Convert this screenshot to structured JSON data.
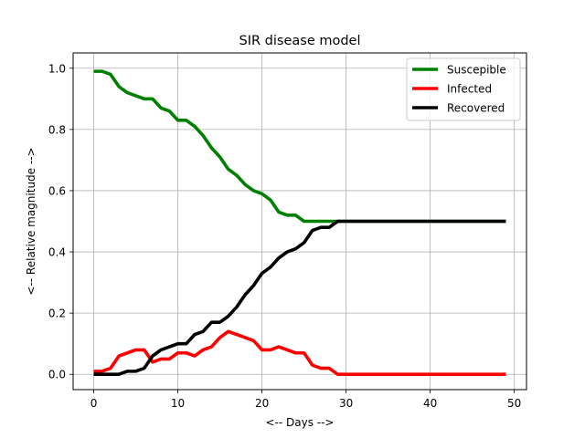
{
  "chart_data": {
    "type": "line",
    "title": "SIR disease model",
    "xlabel": "<-- Days -->",
    "ylabel": "<-- Relative magnitude -->",
    "xlim": [
      -2.45,
      51.45
    ],
    "ylim": [
      -0.05,
      1.05
    ],
    "x_ticks": [
      0,
      10,
      20,
      30,
      40,
      50
    ],
    "y_ticks": [
      0.0,
      0.2,
      0.4,
      0.6,
      0.8,
      1.0
    ],
    "x_tick_labels": [
      "0",
      "10",
      "20",
      "30",
      "40",
      "50"
    ],
    "y_tick_labels": [
      "0.0",
      "0.2",
      "0.4",
      "0.6",
      "0.8",
      "1.0"
    ],
    "grid": true,
    "legend_position": "top-right",
    "x": [
      0,
      1,
      2,
      3,
      4,
      5,
      6,
      7,
      8,
      9,
      10,
      11,
      12,
      13,
      14,
      15,
      16,
      17,
      18,
      19,
      20,
      21,
      22,
      23,
      24,
      25,
      26,
      27,
      28,
      29,
      30,
      31,
      32,
      33,
      34,
      35,
      36,
      37,
      38,
      39,
      40,
      41,
      42,
      43,
      44,
      45,
      46,
      47,
      48,
      49
    ],
    "series": [
      {
        "name": "Suscepible",
        "color": "#008000",
        "values": [
          0.99,
          0.99,
          0.98,
          0.94,
          0.92,
          0.91,
          0.9,
          0.9,
          0.87,
          0.86,
          0.83,
          0.83,
          0.81,
          0.78,
          0.74,
          0.71,
          0.67,
          0.65,
          0.62,
          0.6,
          0.59,
          0.57,
          0.53,
          0.52,
          0.52,
          0.5,
          0.5,
          0.5,
          0.5,
          0.5,
          0.5,
          0.5,
          0.5,
          0.5,
          0.5,
          0.5,
          0.5,
          0.5,
          0.5,
          0.5,
          0.5,
          0.5,
          0.5,
          0.5,
          0.5,
          0.5,
          0.5,
          0.5,
          0.5,
          0.5
        ]
      },
      {
        "name": "Infected",
        "color": "#ff0000",
        "values": [
          0.01,
          0.01,
          0.02,
          0.06,
          0.07,
          0.08,
          0.08,
          0.04,
          0.05,
          0.05,
          0.07,
          0.07,
          0.06,
          0.08,
          0.09,
          0.12,
          0.14,
          0.13,
          0.12,
          0.11,
          0.08,
          0.08,
          0.09,
          0.08,
          0.07,
          0.07,
          0.03,
          0.02,
          0.02,
          0.0,
          0.0,
          0.0,
          0.0,
          0.0,
          0.0,
          0.0,
          0.0,
          0.0,
          0.0,
          0.0,
          0.0,
          0.0,
          0.0,
          0.0,
          0.0,
          0.0,
          0.0,
          0.0,
          0.0,
          0.0
        ]
      },
      {
        "name": "Recovered",
        "color": "#000000",
        "values": [
          0.0,
          0.0,
          0.0,
          0.0,
          0.01,
          0.01,
          0.02,
          0.06,
          0.08,
          0.09,
          0.1,
          0.1,
          0.13,
          0.14,
          0.17,
          0.17,
          0.19,
          0.22,
          0.26,
          0.29,
          0.33,
          0.35,
          0.38,
          0.4,
          0.41,
          0.43,
          0.47,
          0.48,
          0.48,
          0.5,
          0.5,
          0.5,
          0.5,
          0.5,
          0.5,
          0.5,
          0.5,
          0.5,
          0.5,
          0.5,
          0.5,
          0.5,
          0.5,
          0.5,
          0.5,
          0.5,
          0.5,
          0.5,
          0.5,
          0.5
        ]
      }
    ]
  }
}
